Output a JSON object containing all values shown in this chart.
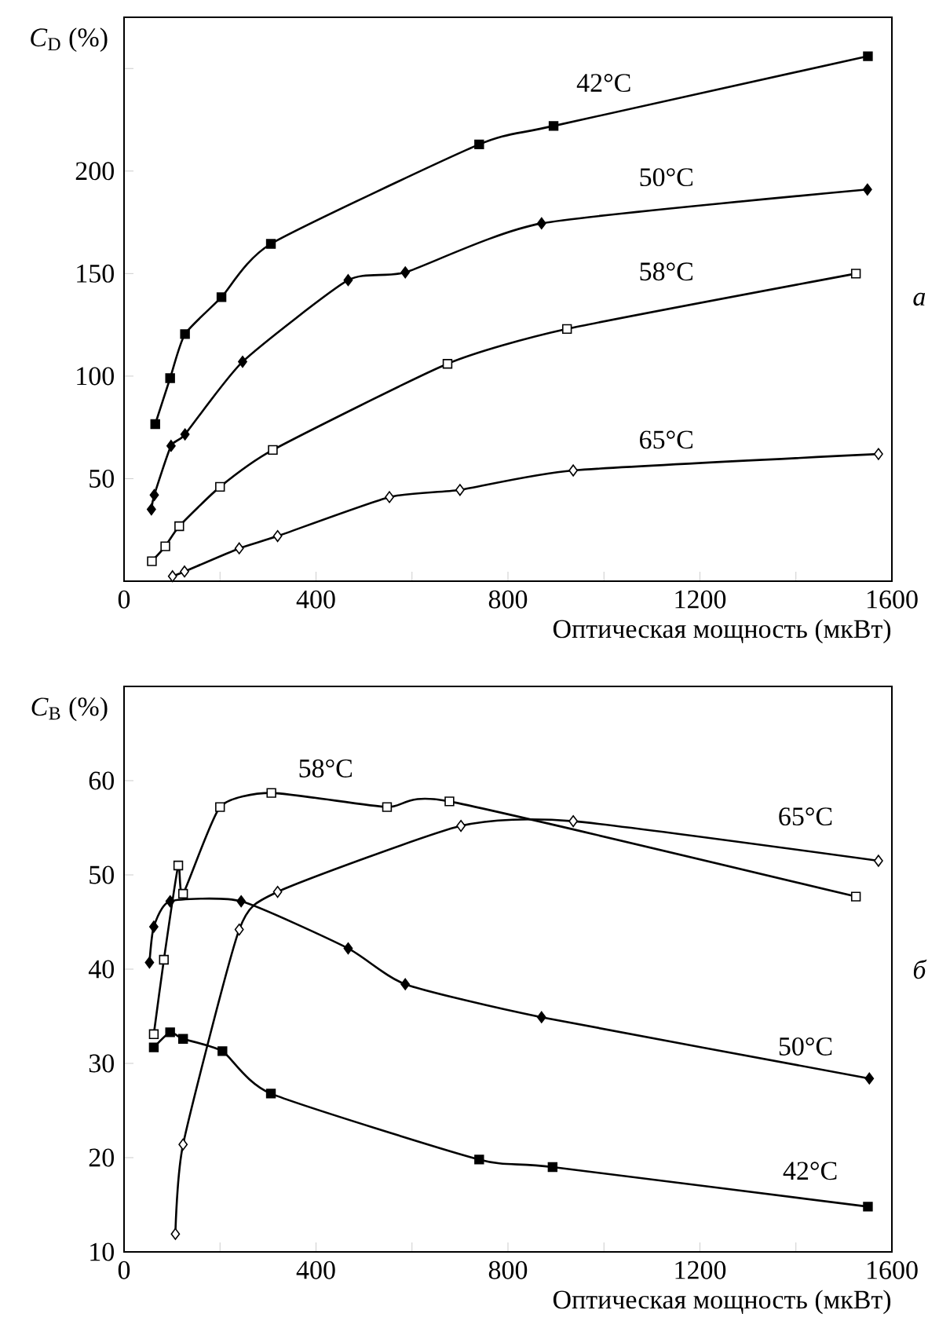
{
  "chart_data": [
    {
      "type": "line",
      "ylabel": "*C*$_{D}$ (%)",
      "xlabel": "Оптическая мощность (мкВт)",
      "annotations": [
        "*а*"
      ],
      "xlim": [
        0,
        1600
      ],
      "ylim": [
        0,
        275
      ],
      "xticks": [
        0,
        {
          "value": 200,
          "label": null
        },
        400,
        {
          "value": 600,
          "label": null
        },
        800,
        {
          "value": 1000,
          "label": null
        },
        1200,
        {
          "value": 1400,
          "label": null
        },
        1600
      ],
      "yticks": [
        50,
        100,
        150,
        200,
        {
          "value": 250,
          "label": null
        }
      ],
      "line_style": "solid",
      "series": [
        {
          "name": "42°C",
          "color": "#000000",
          "marker": "square",
          "x": [
            65,
            96,
            127,
            203,
            306,
            740,
            895,
            1550
          ],
          "values": [
            76.6,
            99,
            120.5,
            138.5,
            164.5,
            213,
            222,
            256
          ]
        },
        {
          "name": "50°C",
          "color": "#000000",
          "marker": "diamond",
          "x": [
            57,
            63,
            98,
            127,
            247,
            467,
            586,
            870,
            1549
          ],
          "values": [
            35,
            42,
            66,
            71.6,
            107,
            146.8,
            150.6,
            174.5,
            191
          ]
        },
        {
          "name": "58°C",
          "color": "#000000",
          "marker": "square",
          "colors": [
            "#ffffff",
            "#ffffff",
            "#ffffff",
            "#ffffff",
            "#ffffff",
            "#ffffff",
            "#ffffff",
            "#ffffff"
          ],
          "x": [
            58,
            86,
            115,
            200,
            310,
            674,
            923,
            1525
          ],
          "values": [
            9.7,
            17,
            26.8,
            46,
            64,
            106,
            123,
            150
          ]
        },
        {
          "name": "65°C",
          "color": "#000000",
          "marker": "diamond",
          "colors": [
            "#ffffff",
            "#ffffff",
            "#ffffff",
            "#ffffff",
            "#ffffff",
            "#ffffff",
            "#ffffff",
            "#ffffff"
          ],
          "x": [
            101,
            126,
            240,
            320,
            553,
            700,
            936,
            1572
          ],
          "values": [
            2.4,
            4.7,
            16,
            22,
            41,
            44.5,
            54,
            62
          ]
        }
      ]
    },
    {
      "type": "line",
      "ylabel": "*C*$_{B}$ (%)",
      "xlabel": "Оптическая мощность (мкВт)",
      "annotations": [
        "*б*"
      ],
      "xlim": [
        0,
        1600
      ],
      "ylim": [
        10,
        70
      ],
      "xticks": [
        0,
        {
          "value": 200,
          "label": null
        },
        400,
        {
          "value": 600,
          "label": null
        },
        800,
        {
          "value": 1000,
          "label": null
        },
        1200,
        {
          "value": 1400,
          "label": null
        },
        1600
      ],
      "yticks": [
        10,
        20,
        30,
        40,
        50,
        60
      ],
      "line_style": "solid",
      "series": [
        {
          "name": "42°C",
          "color": "#000000",
          "marker": "square",
          "x": [
            62,
            96,
            123,
            205,
            306,
            740,
            893,
            1550
          ],
          "values": [
            31.7,
            33.3,
            32.6,
            31.3,
            26.8,
            19.8,
            19,
            14.8
          ]
        },
        {
          "name": "50°C",
          "color": "#000000",
          "marker": "diamond",
          "x": [
            53,
            62,
            96,
            244,
            467,
            586,
            870,
            1553
          ],
          "values": [
            40.7,
            44.5,
            47.2,
            47.2,
            42.2,
            38.4,
            34.9,
            28.4
          ]
        },
        {
          "name": "58°C",
          "color": "#000000",
          "marker": "square",
          "colors": [
            "#ffffff",
            "#ffffff",
            "#ffffff",
            "#ffffff",
            "#ffffff",
            "#ffffff",
            "#ffffff",
            "#ffffff",
            "#ffffff"
          ],
          "x": [
            62,
            83,
            113,
            123,
            200,
            307,
            548,
            678,
            1525
          ],
          "values": [
            33.1,
            41,
            51,
            48,
            57.2,
            58.7,
            57.2,
            57.8,
            47.7
          ]
        },
        {
          "name": "65°C",
          "color": "#000000",
          "marker": "diamond",
          "colors": [
            "#ffffff",
            "#ffffff",
            "#ffffff",
            "#ffffff",
            "#ffffff",
            "#ffffff",
            "#ffffff"
          ],
          "x": [
            107,
            123,
            240,
            320,
            702,
            936,
            1572
          ],
          "values": [
            11.9,
            21.4,
            44.2,
            48.2,
            55.2,
            55.7,
            51.5
          ]
        }
      ]
    }
  ]
}
